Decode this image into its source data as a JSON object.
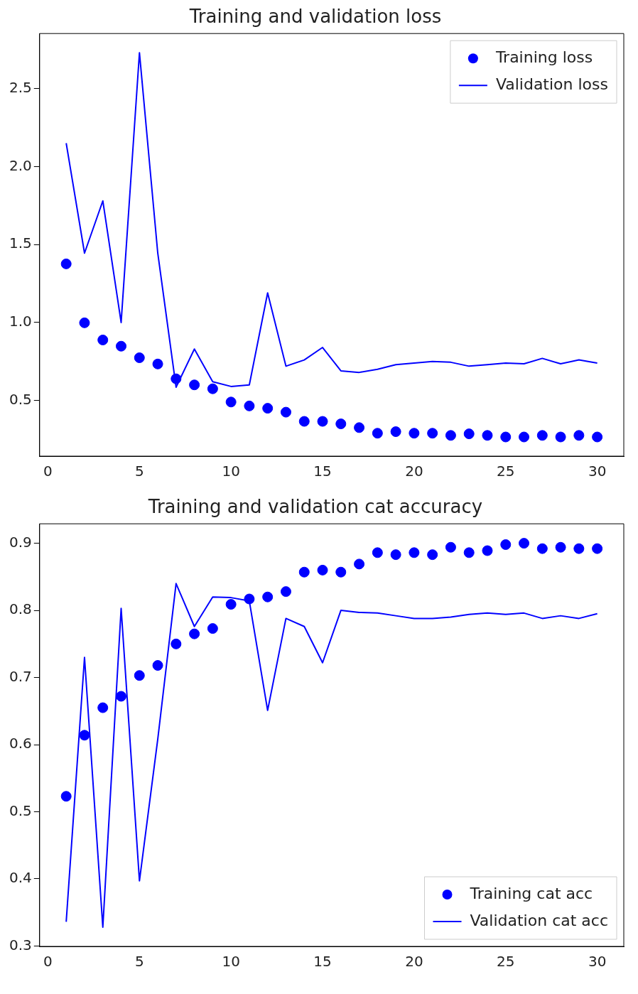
{
  "chart_data": [
    {
      "type": "line",
      "title": "Training and validation loss",
      "x": [
        1,
        2,
        3,
        4,
        5,
        6,
        7,
        8,
        9,
        10,
        11,
        12,
        13,
        14,
        15,
        16,
        17,
        18,
        19,
        20,
        21,
        22,
        23,
        24,
        25,
        26,
        27,
        28,
        29,
        30
      ],
      "series": [
        {
          "name": "Training loss",
          "type": "scatter",
          "marker": "circle",
          "color": "#0000ff",
          "values": [
            1.376,
            0.998,
            0.888,
            0.848,
            0.774,
            0.734,
            0.639,
            0.6,
            0.575,
            0.49,
            0.465,
            0.45,
            0.425,
            0.366,
            0.366,
            0.35,
            0.326,
            0.29,
            0.3,
            0.29,
            0.29,
            0.276,
            0.286,
            0.276,
            0.266,
            0.266,
            0.276,
            0.266,
            0.276,
            0.266
          ]
        },
        {
          "name": "Validation loss",
          "type": "line",
          "line_style": "solid",
          "color": "#0000ff",
          "values": [
            2.15,
            1.445,
            1.78,
            1.0,
            2.73,
            1.445,
            0.585,
            0.83,
            0.62,
            0.59,
            0.6,
            1.19,
            0.72,
            0.76,
            0.84,
            0.69,
            0.68,
            0.7,
            0.73,
            0.74,
            0.75,
            0.745,
            0.72,
            0.73,
            0.74,
            0.735,
            0.77,
            0.735,
            0.76,
            0.74
          ]
        }
      ],
      "xlim": [
        -0.45,
        31.45
      ],
      "xticks": [
        0,
        5,
        10,
        15,
        20,
        25,
        30
      ],
      "ylim": [
        0.143,
        2.853
      ],
      "yticks": [
        0.5,
        {
          "value": 1,
          "label": "1.0"
        },
        1.5,
        {
          "value": 2,
          "label": "2.0"
        },
        2.5
      ],
      "grid": false,
      "legend": "top right"
    },
    {
      "type": "line",
      "title": "Training and validation cat accuracy",
      "x": [
        1,
        2,
        3,
        4,
        5,
        6,
        7,
        8,
        9,
        10,
        11,
        12,
        13,
        14,
        15,
        16,
        17,
        18,
        19,
        20,
        21,
        22,
        23,
        24,
        25,
        26,
        27,
        28,
        29,
        30
      ],
      "series": [
        {
          "name": "Training cat acc",
          "type": "scatter",
          "marker": "circle",
          "color": "#0000ff",
          "values": [
            0.523,
            0.614,
            0.655,
            0.672,
            0.703,
            0.718,
            0.75,
            0.765,
            0.773,
            0.809,
            0.817,
            0.82,
            0.828,
            0.857,
            0.86,
            0.857,
            0.869,
            0.886,
            0.883,
            0.886,
            0.883,
            0.894,
            0.886,
            0.889,
            0.898,
            0.9,
            0.892,
            0.894,
            0.892,
            0.892
          ]
        },
        {
          "name": "Validation cat acc",
          "type": "line",
          "line_style": "solid",
          "color": "#0000ff",
          "values": [
            0.336,
            0.73,
            0.328,
            0.803,
            0.397,
            0.608,
            0.84,
            0.776,
            0.82,
            0.819,
            0.814,
            0.651,
            0.788,
            0.776,
            0.722,
            0.8,
            0.797,
            0.796,
            0.792,
            0.788,
            0.788,
            0.79,
            0.794,
            0.796,
            0.794,
            0.796,
            0.788,
            0.792,
            0.788,
            0.795
          ]
        }
      ],
      "xlim": [
        -0.45,
        31.45
      ],
      "xticks": [
        0,
        5,
        10,
        15,
        20,
        25,
        30
      ],
      "ylim": [
        0.2994,
        0.929
      ],
      "yticks": [
        0.3,
        0.4,
        0.5,
        0.6,
        0.7,
        0.8,
        0.9
      ],
      "grid": false,
      "legend": "bottom right"
    }
  ]
}
